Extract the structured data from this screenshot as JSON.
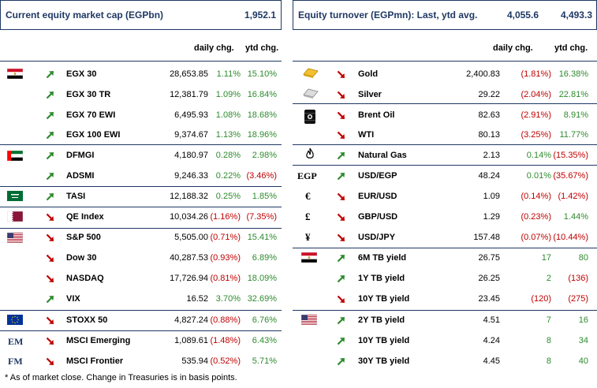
{
  "left_header": {
    "title": "Current equity market cap (EGPbn)",
    "value": "1,952.1"
  },
  "right_header": {
    "title": "Equity turnover (EGPmn): Last, ytd avg.",
    "last": "4,055.6",
    "ytd_avg": "4,493.3"
  },
  "columns": {
    "daily": "daily chg.",
    "ytd": "ytd chg."
  },
  "left_rows": [
    {
      "name": "EGX 30",
      "value": "28,653.85",
      "daily": "1.11%",
      "ytd": "15.10%",
      "dir": "up",
      "dsign": "pos",
      "ysign": "pos"
    },
    {
      "name": "EGX 30 TR",
      "value": "12,381.79",
      "daily": "1.09%",
      "ytd": "16.84%",
      "dir": "up",
      "dsign": "pos",
      "ysign": "pos"
    },
    {
      "name": "EGX 70 EWI",
      "value": "6,495.93",
      "daily": "1.08%",
      "ytd": "18.68%",
      "dir": "up",
      "dsign": "pos",
      "ysign": "pos"
    },
    {
      "name": "EGX 100 EWI",
      "value": "9,374.67",
      "daily": "1.13%",
      "ytd": "18.96%",
      "dir": "up",
      "dsign": "pos",
      "ysign": "pos"
    },
    {
      "name": "DFMGI",
      "value": "4,180.97",
      "daily": "0.28%",
      "ytd": "2.98%",
      "dir": "up",
      "dsign": "pos",
      "ysign": "pos"
    },
    {
      "name": "ADSMI",
      "value": "9,246.33",
      "daily": "0.22%",
      "ytd": "(3.46%)",
      "dir": "up",
      "dsign": "pos",
      "ysign": "neg"
    },
    {
      "name": "TASI",
      "value": "12,188.32",
      "daily": "0.25%",
      "ytd": "1.85%",
      "dir": "up",
      "dsign": "pos",
      "ysign": "pos"
    },
    {
      "name": "QE Index",
      "value": "10,034.26",
      "daily": "(1.16%)",
      "ytd": "(7.35%)",
      "dir": "down",
      "dsign": "neg",
      "ysign": "neg"
    },
    {
      "name": "S&P 500",
      "value": "5,505.00",
      "daily": "(0.71%)",
      "ytd": "15.41%",
      "dir": "down",
      "dsign": "neg",
      "ysign": "pos"
    },
    {
      "name": "Dow 30",
      "value": "40,287.53",
      "daily": "(0.93%)",
      "ytd": "6.89%",
      "dir": "down",
      "dsign": "neg",
      "ysign": "pos"
    },
    {
      "name": "NASDAQ",
      "value": "17,726.94",
      "daily": "(0.81%)",
      "ytd": "18.09%",
      "dir": "down",
      "dsign": "neg",
      "ysign": "pos"
    },
    {
      "name": "VIX",
      "value": "16.52",
      "daily": "3.70%",
      "ytd": "32.69%",
      "dir": "up",
      "dsign": "pos",
      "ysign": "pos"
    },
    {
      "name": "STOXX 50",
      "value": "4,827.24",
      "daily": "(0.88%)",
      "ytd": "6.76%",
      "dir": "down",
      "dsign": "neg",
      "ysign": "pos"
    },
    {
      "name": "MSCI Emerging",
      "value": "1,089.61",
      "daily": "(1.48%)",
      "ytd": "6.43%",
      "dir": "down",
      "dsign": "neg",
      "ysign": "pos"
    },
    {
      "name": "MSCI Frontier",
      "value": "535.94",
      "daily": "(0.52%)",
      "ytd": "5.71%",
      "dir": "down",
      "dsign": "neg",
      "ysign": "pos"
    }
  ],
  "right_rows": [
    {
      "name": "Gold",
      "value": "2,400.83",
      "daily": "(1.81%)",
      "ytd": "16.38%",
      "dir": "down",
      "dsign": "neg",
      "ysign": "pos"
    },
    {
      "name": "Silver",
      "value": "29.22",
      "daily": "(2.04%)",
      "ytd": "22.81%",
      "dir": "down",
      "dsign": "neg",
      "ysign": "pos"
    },
    {
      "name": "Brent Oil",
      "value": "82.63",
      "daily": "(2.91%)",
      "ytd": "8.91%",
      "dir": "down",
      "dsign": "neg",
      "ysign": "pos"
    },
    {
      "name": "WTI",
      "value": "80.13",
      "daily": "(3.25%)",
      "ytd": "11.77%",
      "dir": "down",
      "dsign": "neg",
      "ysign": "pos"
    },
    {
      "name": "Natural Gas",
      "value": "2.13",
      "daily": "0.14%",
      "ytd": "(15.35%)",
      "dir": "up",
      "dsign": "pos",
      "ysign": "neg"
    },
    {
      "name": "USD/EGP",
      "value": "48.24",
      "daily": "0.01%",
      "ytd": "(35.67%)",
      "dir": "up",
      "dsign": "pos",
      "ysign": "neg"
    },
    {
      "name": "EUR/USD",
      "value": "1.09",
      "daily": "(0.14%)",
      "ytd": "(1.42%)",
      "dir": "down",
      "dsign": "neg",
      "ysign": "neg"
    },
    {
      "name": "GBP/USD",
      "value": "1.29",
      "daily": "(0.23%)",
      "ytd": "1.44%",
      "dir": "down",
      "dsign": "neg",
      "ysign": "pos"
    },
    {
      "name": "USD/JPY",
      "value": "157.48",
      "daily": "(0.07%)",
      "ytd": "(10.44%)",
      "dir": "down",
      "dsign": "neg",
      "ysign": "neg"
    },
    {
      "name": "6M TB yield",
      "value": "26.75",
      "daily": "17",
      "ytd": "80",
      "dir": "up",
      "dsign": "pos",
      "ysign": "pos"
    },
    {
      "name": "1Y TB yield",
      "value": "26.25",
      "daily": "2",
      "ytd": "(136)",
      "dir": "up",
      "dsign": "pos",
      "ysign": "neg"
    },
    {
      "name": "10Y TB yield",
      "value": "23.45",
      "daily": "(120)",
      "ytd": "(275)",
      "dir": "down",
      "dsign": "neg",
      "ysign": "neg"
    },
    {
      "name": "2Y TB yield",
      "value": "4.51",
      "daily": "7",
      "ytd": "16",
      "dir": "up",
      "dsign": "pos",
      "ysign": "pos"
    },
    {
      "name": "10Y TB yield",
      "value": "4.24",
      "daily": "8",
      "ytd": "34",
      "dir": "up",
      "dsign": "pos",
      "ysign": "pos"
    },
    {
      "name": "30Y TB yield",
      "value": "4.45",
      "daily": "8",
      "ytd": "40",
      "dir": "up",
      "dsign": "pos",
      "ysign": "pos"
    }
  ],
  "icons": {
    "egypt_flag": "egypt-flag-icon",
    "uae_flag": "uae-flag-icon",
    "saudi_flag": "saudi-flag-icon",
    "qatar_flag": "qatar-flag-icon",
    "us_flag": "us-flag-icon",
    "eu_flag": "eu-flag-icon",
    "em_label": "EM",
    "fm_label": "FM",
    "egp_label": "EGP",
    "euro_symbol": "€",
    "pound_symbol": "£",
    "yen_symbol": "¥"
  },
  "colors": {
    "navy": "#1f3864",
    "green": "#2e8b2e",
    "red": "#c00000"
  },
  "footer": "* As of market close. Change in Treasuries is in basis points."
}
